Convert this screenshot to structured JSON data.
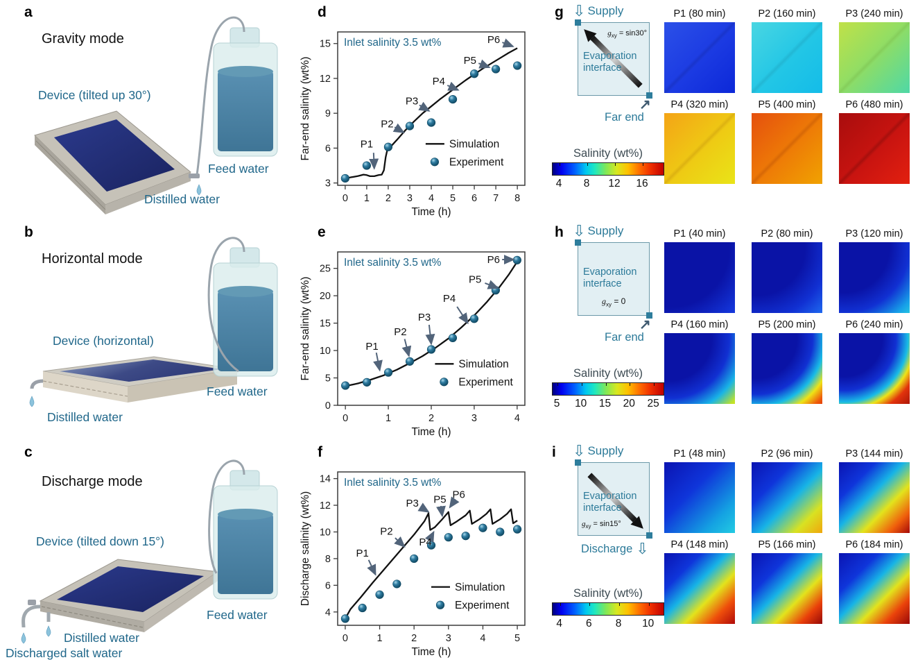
{
  "figure_title": "Interfacial solar evaporation device operating modes and salinity evolution",
  "colors": {
    "accent_teal": "#20678a",
    "diagram_teal": "#2c7a99",
    "axis": "#3a3a3a",
    "sim_line": "#111111",
    "annotation_arrow": "#52647a",
    "sphere_light": "#a8d8ea",
    "sphere_mid": "#2e7ba0",
    "sphere_dark": "#0e455e",
    "navy_surface": "#232c6e",
    "tray_frame": "#c6c2b8",
    "water_fill": "#4c87a8",
    "bottle_glass": "#d9ecec"
  },
  "illustrations": {
    "a": {
      "letter": "a",
      "mode": "Gravity mode",
      "device": "Device (tilted up 30°)",
      "feed": "Feed water",
      "out1": "Distilled water"
    },
    "b": {
      "letter": "b",
      "mode": "Horizontal mode",
      "device": "Device (horizontal)",
      "feed": "Feed water",
      "out1": "Distilled water"
    },
    "c": {
      "letter": "c",
      "mode": "Discharge mode",
      "device": "Device (tilted down 15°)",
      "feed": "Feed water",
      "out1": "Distilled water",
      "out2": "Discharged salt water"
    }
  },
  "chart_data": [
    {
      "id": "d",
      "panel_letter": "d",
      "type": "line",
      "title": "Inlet salinity 3.5 wt%",
      "xlabel": "Time (h)",
      "ylabel": "Far-end salinity (wt%)",
      "xlim": [
        -0.35,
        8.35
      ],
      "ylim": [
        2.8,
        16.0
      ],
      "xticks": [
        0,
        1,
        2,
        3,
        4,
        5,
        6,
        7,
        8
      ],
      "yticks": [
        3,
        6,
        9,
        12,
        15
      ],
      "legend": {
        "line": "Simulation",
        "marker": "Experiment",
        "fx": 0.47,
        "fy": 0.73
      },
      "series": [
        {
          "name": "Simulation",
          "points": [
            [
              0,
              3.4
            ],
            [
              0.3,
              3.5
            ],
            [
              0.6,
              3.6
            ],
            [
              0.85,
              3.72
            ],
            [
              1.0,
              3.68
            ],
            [
              1.15,
              3.58
            ],
            [
              1.35,
              3.58
            ],
            [
              1.55,
              3.68
            ],
            [
              1.7,
              3.72
            ],
            [
              1.8,
              4.1
            ],
            [
              1.88,
              5.2
            ],
            [
              1.95,
              5.8
            ],
            [
              2.1,
              6.1
            ],
            [
              2.4,
              6.7
            ],
            [
              2.8,
              7.55
            ],
            [
              3.2,
              8.3
            ],
            [
              3.6,
              9.0
            ],
            [
              4.0,
              9.6
            ],
            [
              4.4,
              10.2
            ],
            [
              4.8,
              10.75
            ],
            [
              5.2,
              11.3
            ],
            [
              5.6,
              11.85
            ],
            [
              6.0,
              12.35
            ],
            [
              6.4,
              12.85
            ],
            [
              6.8,
              13.3
            ],
            [
              7.2,
              13.75
            ],
            [
              7.6,
              14.2
            ],
            [
              8.0,
              14.6
            ]
          ]
        },
        {
          "name": "Experiment",
          "points": [
            [
              0,
              3.4
            ],
            [
              1,
              4.5
            ],
            [
              2,
              6.1
            ],
            [
              3,
              7.9
            ],
            [
              4,
              8.2
            ],
            [
              5,
              10.2
            ],
            [
              6,
              12.4
            ],
            [
              7,
              12.8
            ],
            [
              8,
              13.1
            ]
          ]
        }
      ],
      "annotations": [
        {
          "label": "P1",
          "tx": 1.0,
          "ty": 6.35,
          "sx": 1.32,
          "sy": 5.6,
          "ax": 1.35,
          "ay": 4.25
        },
        {
          "label": "P2",
          "tx": 1.95,
          "ty": 8.1,
          "sx": 2.3,
          "sy": 7.8,
          "ax": 2.72,
          "ay": 7.35
        },
        {
          "label": "P3",
          "tx": 3.1,
          "ty": 10.05,
          "sx": 3.45,
          "sy": 9.7,
          "ax": 3.9,
          "ay": 9.2
        },
        {
          "label": "P4",
          "tx": 4.35,
          "ty": 11.75,
          "sx": 4.75,
          "sy": 11.4,
          "ax": 5.25,
          "ay": 11.0
        },
        {
          "label": "P5",
          "tx": 5.8,
          "ty": 13.55,
          "sx": 6.2,
          "sy": 13.3,
          "ax": 6.7,
          "ay": 12.95
        },
        {
          "label": "P6",
          "tx": 6.9,
          "ty": 15.35,
          "sx": 7.3,
          "sy": 15.1,
          "ax": 7.8,
          "ay": 14.75
        }
      ]
    },
    {
      "id": "e",
      "panel_letter": "e",
      "type": "line",
      "title": "Inlet salinity 3.5 wt%",
      "xlabel": "Time (h)",
      "ylabel": "Far-end salinity (wt%)",
      "xlim": [
        -0.18,
        4.18
      ],
      "ylim": [
        0,
        28
      ],
      "xticks": [
        0,
        1,
        2,
        3,
        4
      ],
      "yticks": [
        0,
        5,
        10,
        15,
        20,
        25
      ],
      "legend": {
        "line": "Simulation",
        "marker": "Experiment",
        "fx": 0.52,
        "fy": 0.73
      },
      "series": [
        {
          "name": "Simulation",
          "points": [
            [
              0,
              3.5
            ],
            [
              0.3,
              4.0
            ],
            [
              0.6,
              4.7
            ],
            [
              0.9,
              5.5
            ],
            [
              1.2,
              6.5
            ],
            [
              1.5,
              7.7
            ],
            [
              1.8,
              9.0
            ],
            [
              2.1,
              10.5
            ],
            [
              2.4,
              12.2
            ],
            [
              2.7,
              14.2
            ],
            [
              3.0,
              16.4
            ],
            [
              3.3,
              18.9
            ],
            [
              3.6,
              21.7
            ],
            [
              3.8,
              23.8
            ],
            [
              4.0,
              26.2
            ]
          ]
        },
        {
          "name": "Experiment",
          "points": [
            [
              0,
              3.6
            ],
            [
              0.5,
              4.2
            ],
            [
              1,
              6.0
            ],
            [
              1.5,
              8.0
            ],
            [
              2,
              10.2
            ],
            [
              2.5,
              12.3
            ],
            [
              3,
              15.8
            ],
            [
              3.5,
              21.0
            ],
            [
              4,
              26.5
            ]
          ]
        }
      ],
      "annotations": [
        {
          "label": "P1",
          "tx": 0.62,
          "ty": 10.8,
          "sx": 0.72,
          "sy": 9.6,
          "ax": 0.8,
          "ay": 6.4
        },
        {
          "label": "P2",
          "tx": 1.28,
          "ty": 13.4,
          "sx": 1.38,
          "sy": 12.1,
          "ax": 1.48,
          "ay": 9.0
        },
        {
          "label": "P3",
          "tx": 1.84,
          "ty": 16.1,
          "sx": 1.95,
          "sy": 14.7,
          "ax": 2.0,
          "ay": 11.2
        },
        {
          "label": "P4",
          "tx": 2.42,
          "ty": 19.5,
          "sx": 2.6,
          "sy": 18.0,
          "ax": 2.85,
          "ay": 15.0
        },
        {
          "label": "P5",
          "tx": 3.02,
          "ty": 23.0,
          "sx": 3.25,
          "sy": 22.3,
          "ax": 3.55,
          "ay": 21.4
        },
        {
          "label": "P6",
          "tx": 3.45,
          "ty": 26.6,
          "sx": 3.65,
          "sy": 26.6,
          "ax": 3.92,
          "ay": 26.6
        }
      ]
    },
    {
      "id": "f",
      "panel_letter": "f",
      "type": "line",
      "title": "Inlet salinity 3.5 wt%",
      "xlabel": "Time (h)",
      "ylabel": "Discharge salinity (wt%)",
      "xlim": [
        -0.22,
        5.22
      ],
      "ylim": [
        3,
        14.5
      ],
      "xticks": [
        0,
        1,
        2,
        3,
        4,
        5
      ],
      "yticks": [
        4,
        6,
        8,
        10,
        12,
        14
      ],
      "legend": {
        "line": "Simulation",
        "marker": "Experiment",
        "fx": 0.5,
        "fy": 0.75
      },
      "series": [
        {
          "name": "Simulation",
          "points": [
            [
              0,
              3.5
            ],
            [
              0.15,
              4.2
            ],
            [
              0.45,
              5.1
            ],
            [
              0.8,
              6.2
            ],
            [
              1.2,
              7.4
            ],
            [
              1.6,
              8.6
            ],
            [
              2.0,
              9.8
            ],
            [
              2.3,
              10.8
            ],
            [
              2.42,
              11.4
            ],
            [
              2.47,
              10.15
            ],
            [
              2.6,
              10.35
            ],
            [
              2.8,
              10.9
            ],
            [
              3.0,
              11.5
            ],
            [
              3.06,
              10.5
            ],
            [
              3.25,
              10.8
            ],
            [
              3.5,
              11.25
            ],
            [
              3.62,
              11.6
            ],
            [
              3.68,
              10.6
            ],
            [
              3.9,
              10.95
            ],
            [
              4.1,
              11.35
            ],
            [
              4.22,
              11.7
            ],
            [
              4.28,
              10.6
            ],
            [
              4.5,
              10.95
            ],
            [
              4.7,
              11.35
            ],
            [
              4.82,
              11.7
            ],
            [
              4.88,
              10.65
            ],
            [
              5.0,
              10.85
            ]
          ]
        },
        {
          "name": "Experiment",
          "points": [
            [
              0,
              3.5
            ],
            [
              0.5,
              4.3
            ],
            [
              1,
              5.3
            ],
            [
              1.5,
              6.1
            ],
            [
              2,
              8.0
            ],
            [
              2.5,
              9.0
            ],
            [
              3,
              9.6
            ],
            [
              3.5,
              9.7
            ],
            [
              4,
              10.3
            ],
            [
              4.5,
              10.0
            ],
            [
              5,
              10.2
            ]
          ]
        }
      ],
      "annotations": [
        {
          "label": "P1",
          "tx": 0.5,
          "ty": 8.4,
          "sx": 0.68,
          "sy": 7.9,
          "ax": 0.88,
          "ay": 6.8
        },
        {
          "label": "P2",
          "tx": 1.2,
          "ty": 10.05,
          "sx": 1.45,
          "sy": 9.55,
          "ax": 1.72,
          "ay": 8.9
        },
        {
          "label": "P3",
          "tx": 1.95,
          "ty": 12.15,
          "sx": 2.2,
          "sy": 11.85,
          "ax": 2.42,
          "ay": 11.5
        },
        {
          "label": "P4",
          "tx": 2.33,
          "ty": 9.25,
          "sx": 2.48,
          "sy": 9.55,
          "ax": 2.57,
          "ay": 10.0
        },
        {
          "label": "P5",
          "tx": 2.75,
          "ty": 12.45,
          "sx": 2.78,
          "sy": 11.95,
          "ax": 2.82,
          "ay": 11.2
        },
        {
          "label": "P6",
          "tx": 3.3,
          "ty": 12.8,
          "sx": 3.2,
          "sy": 12.45,
          "ax": 3.04,
          "ay": 11.85
        }
      ]
    }
  ],
  "sim_panels": {
    "g": {
      "letter": "g",
      "supply": "Supply",
      "interface1": "Evaporation",
      "interface2": "interface",
      "farend": "Far end",
      "gxy": {
        "symbol": "g",
        "sub": "xy",
        "eq": " = sin30°"
      },
      "arrow_direction": "up-left",
      "colorbar": {
        "title": "Salinity (wt%)",
        "min": 3,
        "max": 19,
        "ticks": [
          4,
          8,
          12,
          16
        ]
      },
      "tiles": [
        {
          "label": "P1 (80 min)",
          "bg": "linear-gradient(135deg,transparent 47%,rgba(0,0,40,0.12) 50%,transparent 53%),linear-gradient(135deg,#2b50e8 0%,#1b3ae2 55%,#0c28d8 100%)"
        },
        {
          "label": "P2 (160 min)",
          "bg": "linear-gradient(135deg,transparent 47%,rgba(0,40,60,0.10) 50%,transparent 53%),linear-gradient(135deg,#49d6e2 0%,#22c6e6 55%,#14bce8 100%)"
        },
        {
          "label": "P3 (240 min)",
          "bg": "linear-gradient(135deg,transparent 47%,rgba(60,80,0,0.10) 50%,transparent 53%),linear-gradient(135deg,#c0e148 0%,#8edd66 50%,#4fd8a6 100%)"
        },
        {
          "label": "P4 (320 min)",
          "bg": "linear-gradient(135deg,transparent 47%,rgba(120,50,0,0.14) 50%,transparent 53%),linear-gradient(135deg,#f4a416 0%,#eecb14 55%,#e9e418 100%)"
        },
        {
          "label": "P5 (400 min)",
          "bg": "linear-gradient(135deg,transparent 47%,rgba(90,10,0,0.15) 50%,transparent 53%),linear-gradient(135deg,#e5500e 0%,#ee7d06 55%,#f0a201 100%)"
        },
        {
          "label": "P6 (480 min)",
          "bg": "linear-gradient(135deg,transparent 47%,rgba(40,0,0,0.2) 50%,transparent 53%),linear-gradient(135deg,#a80d0d 0%,#c91410 55%,#e2200f 100%)"
        }
      ]
    },
    "h": {
      "letter": "h",
      "supply": "Supply",
      "interface1": "Evaporation",
      "interface2": "interface",
      "farend": "Far end",
      "gxy": {
        "symbol": "g",
        "sub": "xy",
        "eq": " = 0"
      },
      "arrow_direction": "none",
      "colorbar": {
        "title": "Salinity (wt%)",
        "min": 4,
        "max": 27,
        "ticks": [
          5,
          10,
          15,
          20,
          25
        ]
      },
      "tiles": [
        {
          "label": "P1 (40 min)",
          "bg": "radial-gradient(140% 140% at 8% 8%,#0a13a6 60%,#1230d2 85%,#1b43e6 100%)"
        },
        {
          "label": "P2 (80 min)",
          "bg": "radial-gradient(140% 140% at 8% 8%,#0a13a6 48%,#1130d2 72%,#1e66ee 92%,#2a8df0 100%)"
        },
        {
          "label": "P3 (120 min)",
          "bg": "radial-gradient(140% 140% at 8% 8%,#0a13a6 45%,#1130d2 65%,#17a0e8 84%,#2ee2dd 100%)"
        },
        {
          "label": "P4 (160 min)",
          "bg": "radial-gradient(140% 140% at 8% 8%,#0a13a6 42%,#1130d2 60%,#19b4e6 76%,#bfe229 90%,#efe413 100%)"
        },
        {
          "label": "P5 (200 min)",
          "bg": "radial-gradient(140% 140% at 8% 8%,#0a13a6 40%,#1130d2 56%,#19bce6 68%,#eee316 78%,#ee5b0b 88%,#d41708 100%)"
        },
        {
          "label": "P6 (240 min)",
          "bg": "radial-gradient(140% 140% at 8% 8%,#0a13a6 38%,#1130d2 52%,#19bce6 64%,#eee316 71%,#e2330c 80%,#8f0707 100%)"
        }
      ]
    },
    "i": {
      "letter": "i",
      "supply": "Supply",
      "interface1": "Evaporation",
      "interface2": "interface",
      "discharge": "Discharge",
      "gxy": {
        "symbol": "g",
        "sub": "xy",
        "eq": " = sin15°"
      },
      "arrow_direction": "down-right",
      "colorbar": {
        "title": "Salinity (wt%)",
        "min": 3.5,
        "max": 11,
        "ticks": [
          4,
          6,
          8,
          10
        ]
      },
      "tiles": [
        {
          "label": "P1 (48 min)",
          "bg": "linear-gradient(135deg,#0a14b2 0%,#0f35da 40%,#14a2e2 78%,#23cbe2 100%)"
        },
        {
          "label": "P2 (96 min)",
          "bg": "linear-gradient(135deg,#0a14b2 0%,#0f35da 30%,#17b4e6 55%,#d8e222 80%,#f0a60d 100%)"
        },
        {
          "label": "P3 (144 min)",
          "bg": "linear-gradient(135deg,#0a14b2 0%,#0f35da 26%,#17b4e6 46%,#e3e31c 66%,#ef5d0c 85%,#a50909 100%)"
        },
        {
          "label": "P4 (148 min)",
          "bg": "linear-gradient(135deg,#0a14b2 0%,#0f35da 26%,#17b4e6 45%,#e3e31c 64%,#ee4e0b 82%,#b00a0a 100%)"
        },
        {
          "label": "P5 (166 min)",
          "bg": "linear-gradient(135deg,#0a14b2 0%,#0f35da 28%,#17b4e6 47%,#e3e31c 66%,#e93f0a 84%,#950808 100%)"
        },
        {
          "label": "P6 (184 min)",
          "bg": "linear-gradient(135deg,#0a14b2 0%,#0f35da 28%,#17b4e6 46%,#e3e31c 64%,#ea420b 82%,#990808 100%)"
        }
      ]
    }
  }
}
